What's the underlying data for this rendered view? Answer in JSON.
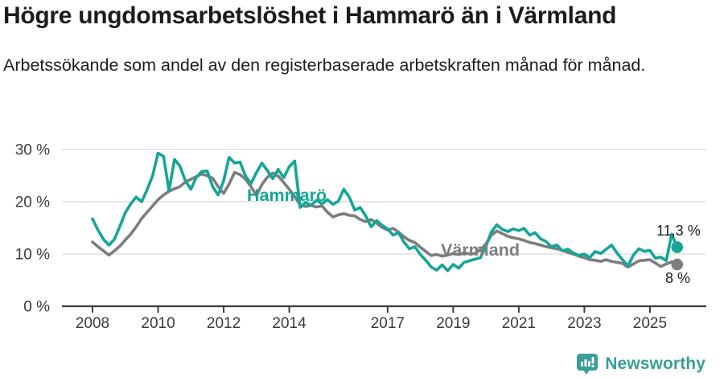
{
  "chart_data": {
    "type": "line",
    "title": "Högre ungdomsarbetslöshet i Hammarö än i Värmland",
    "subtitle": "Arbetssökande som andel av den registerbaserade arbetskraften månad för månad.",
    "x_start": 2008.0,
    "x_end": 2025.83,
    "x_ticks": [
      2008,
      2010,
      2012,
      2014,
      2017,
      2019,
      2021,
      2023,
      2025
    ],
    "y_ticks": [
      0,
      10,
      20,
      30
    ],
    "y_tick_suffix": " %",
    "ylim": [
      0,
      30
    ],
    "grid": "horizontal",
    "legend": "inline-labels",
    "series": [
      {
        "name": "Värmland",
        "color": "#7d7d7d",
        "end_label": "8 %",
        "end_value": 8.0,
        "values": [
          12.3,
          11.4,
          10.6,
          9.8,
          10.6,
          11.5,
          12.7,
          13.8,
          15.2,
          16.8,
          18.0,
          19.2,
          20.4,
          21.3,
          22.0,
          22.5,
          22.9,
          23.8,
          24.3,
          24.8,
          25.3,
          25.0,
          24.5,
          22.9,
          21.6,
          23.4,
          25.6,
          25.2,
          24.3,
          22.9,
          21.2,
          23.3,
          24.7,
          25.5,
          24.9,
          23.7,
          22.4,
          21.0,
          19.4,
          19.1,
          19.3,
          19.0,
          19.2,
          18.0,
          17.1,
          17.5,
          17.7,
          17.4,
          17.3,
          16.6,
          16.2,
          16.6,
          15.9,
          15.1,
          14.6,
          14.9,
          14.2,
          13.3,
          12.6,
          12.2,
          11.3,
          10.5,
          9.7,
          9.9,
          9.6,
          9.8,
          10.1,
          9.9,
          10.2,
          10.0,
          10.1,
          10.8,
          11.9,
          13.6,
          14.4,
          13.9,
          13.4,
          13.1,
          12.9,
          12.6,
          12.2,
          12.0,
          11.7,
          11.4,
          11.2,
          11.0,
          10.7,
          10.3,
          10.0,
          9.6,
          9.3,
          8.9,
          8.8,
          8.6,
          8.9,
          8.6,
          8.4,
          8.2,
          7.5,
          8.1,
          8.7,
          8.8,
          8.9,
          8.3,
          7.6,
          8.1,
          8.5,
          8.0
        ]
      },
      {
        "name": "Hammarö",
        "color": "#16a598",
        "end_label": "11,3 %",
        "end_value": 11.3,
        "values": [
          16.7,
          14.6,
          12.8,
          11.7,
          12.8,
          15.3,
          17.9,
          19.6,
          20.9,
          20.0,
          22.3,
          25.0,
          29.3,
          28.7,
          22.1,
          28.1,
          26.8,
          24.0,
          22.4,
          24.7,
          25.8,
          25.9,
          22.9,
          21.3,
          24.0,
          28.5,
          27.4,
          27.6,
          24.9,
          23.5,
          25.6,
          27.4,
          26.0,
          24.4,
          26.2,
          24.6,
          26.7,
          27.8,
          18.9,
          19.9,
          19.3,
          20.3,
          19.6,
          20.4,
          19.5,
          20.1,
          22.4,
          20.9,
          18.4,
          18.9,
          17.3,
          15.2,
          16.4,
          15.5,
          14.8,
          13.6,
          14.1,
          12.3,
          11.0,
          11.4,
          9.9,
          8.8,
          7.5,
          6.9,
          7.9,
          6.8,
          8.0,
          7.3,
          8.4,
          8.7,
          9.0,
          9.3,
          11.5,
          14.2,
          15.6,
          14.7,
          14.3,
          14.8,
          14.5,
          14.9,
          13.6,
          14.1,
          12.9,
          12.4,
          11.4,
          11.7,
          10.6,
          10.9,
          10.2,
          9.7,
          10.0,
          9.3,
          10.5,
          10.1,
          10.9,
          11.7,
          10.2,
          8.9,
          7.7,
          9.8,
          11.0,
          10.5,
          10.7,
          9.2,
          9.4,
          8.7,
          13.8,
          11.3
        ]
      }
    ]
  },
  "brand": {
    "name": "Newsworthy",
    "color": "#3a9e97"
  }
}
